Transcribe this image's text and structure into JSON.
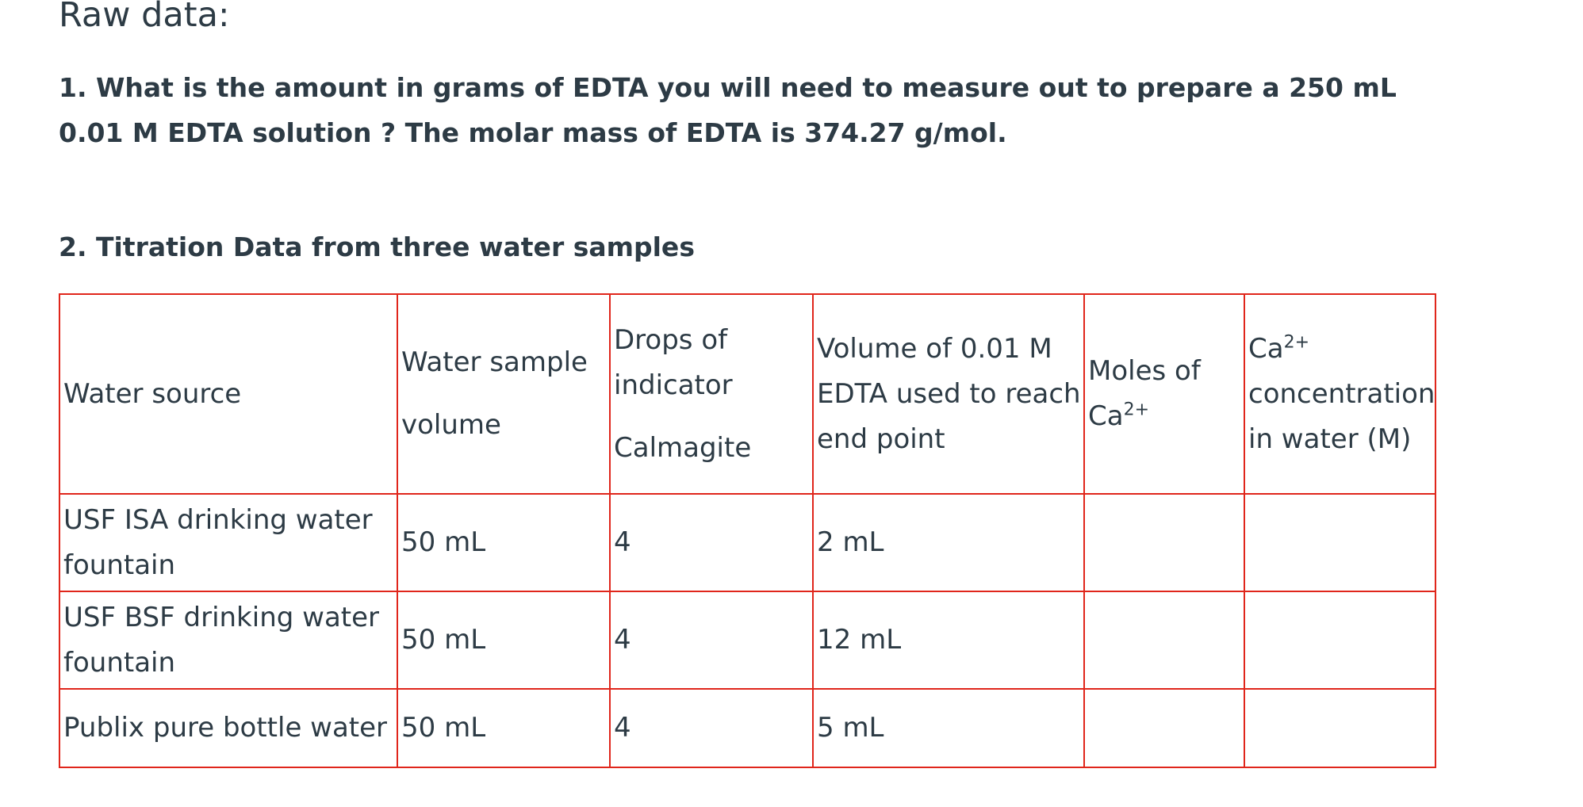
{
  "heading": "Raw data:",
  "question1": "1. What is the amount in grams of EDTA you will need to measure out to prepare a 250 mL 0.01 M EDTA solution ? The molar mass of EDTA is 374.27 g/mol.",
  "question2": "2. Titration Data from three water samples",
  "table": {
    "headers": {
      "water_source": "Water source",
      "sample_volume_line1": "Water sample",
      "sample_volume_line2": "volume",
      "drops_line1": "Drops of",
      "drops_line2": "indicator",
      "drops_line3": "Calmagite",
      "edta_line1": "Volume of 0.01 M",
      "edta_line2": "EDTA used to reach",
      "edta_line3": "end point",
      "moles_line1": "Moles of",
      "moles_line2": "Ca",
      "moles_sup": "2+",
      "conc_line1": "Ca",
      "conc_sup": "2+",
      "conc_line2": "concentration",
      "conc_line3": "in water (M)"
    },
    "rows": [
      {
        "source_line1": "USF ISA drinking water",
        "source_line2": "fountain",
        "volume": "50 mL",
        "drops": "4",
        "edta_volume": "2 mL",
        "moles": "",
        "concentration": ""
      },
      {
        "source_line1": "USF BSF drinking water",
        "source_line2": "fountain",
        "volume": "50 mL",
        "drops": "4",
        "edta_volume": "12 mL",
        "moles": "",
        "concentration": ""
      },
      {
        "source_line1": "Publix pure bottle water",
        "source_line2": "",
        "volume": "50 mL",
        "drops": "4",
        "edta_volume": "5 mL",
        "moles": "",
        "concentration": ""
      }
    ]
  },
  "colors": {
    "text": "#2d3b45",
    "table_border": "#e0261b"
  }
}
